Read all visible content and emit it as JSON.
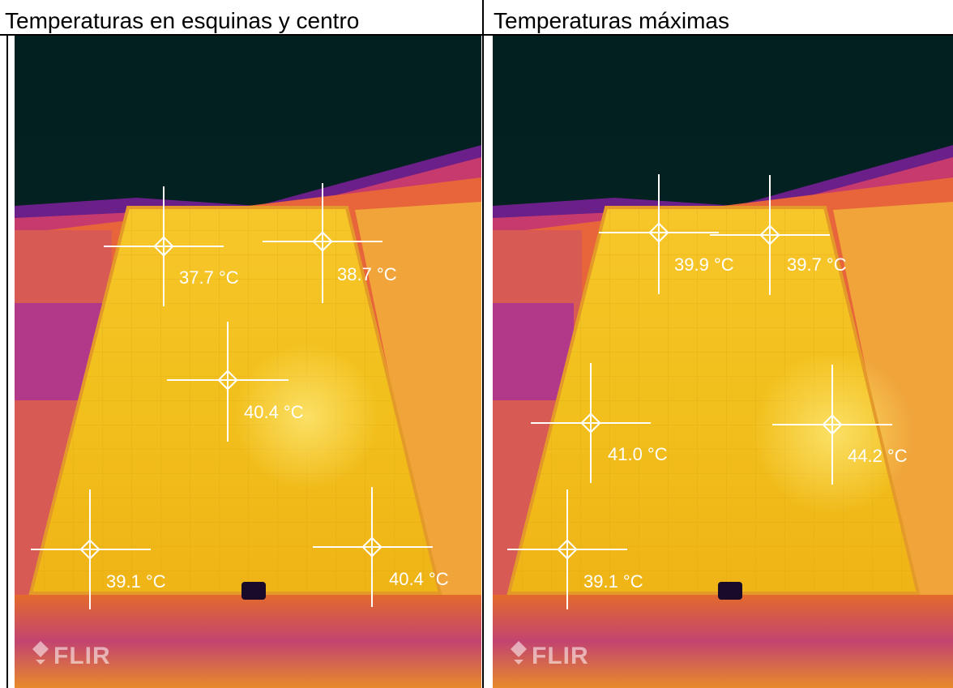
{
  "panels": [
    {
      "heading": "Temperaturas en esquinas y centro",
      "brand": "FLIR",
      "spots": [
        {
          "label": "37.7 °C",
          "value_c": 37.7
        },
        {
          "label": "38.7 °C",
          "value_c": 38.7
        },
        {
          "label": "40.4 °C",
          "value_c": 40.4
        },
        {
          "label": "39.1 °C",
          "value_c": 39.1
        },
        {
          "label": "40.4 °C",
          "value_c": 40.4
        }
      ]
    },
    {
      "heading": "Temperaturas máximas",
      "brand": "FLIR",
      "spots": [
        {
          "label": "39.9 °C",
          "value_c": 39.9
        },
        {
          "label": "39.7 °C",
          "value_c": 39.7
        },
        {
          "label": "41.0 °C",
          "value_c": 41.0
        },
        {
          "label": "44.2 °C",
          "value_c": 44.2
        },
        {
          "label": "39.1 °C",
          "value_c": 39.1
        }
      ]
    }
  ],
  "colors": {
    "sky": "#03201f",
    "panel": "#f4c21a",
    "hot": "#f5d23a",
    "edge": "#e0602a",
    "magenta": "#b0307a",
    "purple": "#5a1a8a"
  }
}
